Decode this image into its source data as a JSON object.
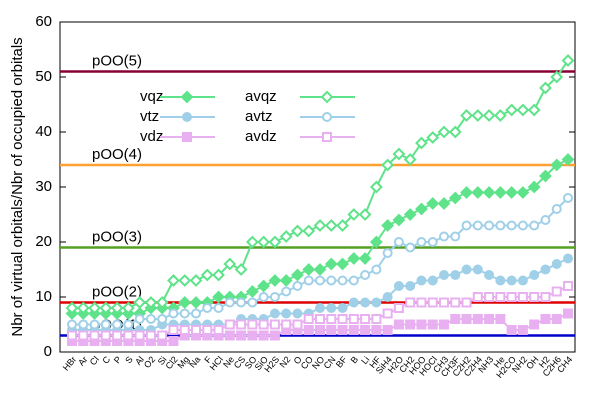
{
  "chart_data": {
    "type": "line",
    "ylabel": "Nbr of virtual orbitals/Nbr of occupied orbitals",
    "categories": [
      "HBr",
      "Ar",
      "Cl",
      "C",
      "P",
      "S",
      "Al",
      "O2",
      "Si",
      "Cl2",
      "Mg",
      "Na",
      "F",
      "HCl",
      "Ne",
      "CS",
      "SO",
      "SiO",
      "H2S",
      "N2",
      "O",
      "CO",
      "NO",
      "CN",
      "BF",
      "B",
      "Li",
      "HF",
      "SiH4",
      "H2O",
      "CH2",
      "HOO",
      "HOCl",
      "CH3",
      "CH3F",
      "C2H2",
      "C2H4",
      "NH3",
      "He",
      "H2CO",
      "NH2",
      "OH",
      "H2",
      "C2H6",
      "CH4"
    ],
    "ylim": [
      0,
      60
    ],
    "yticks": [
      0,
      10,
      20,
      30,
      40,
      50,
      60
    ],
    "hlines": [
      {
        "label": "pOO(1)",
        "value": 3,
        "color": "#0000cc"
      },
      {
        "label": "pOO(2)",
        "value": 9,
        "color": "#dd0000"
      },
      {
        "label": "pOO(3)",
        "value": 19,
        "color": "#55a022"
      },
      {
        "label": "pOO(4)",
        "value": 34,
        "color": "#ffa030"
      },
      {
        "label": "pOO(5)",
        "value": 51,
        "color": "#880033"
      }
    ],
    "series": [
      {
        "name": "vqz",
        "color": "#5fe38a",
        "marker": "diamond",
        "filled": true,
        "values": [
          7,
          7,
          7,
          7,
          7,
          7,
          7,
          8,
          8,
          8,
          9,
          9,
          9,
          10,
          10,
          10,
          11,
          12,
          13,
          13,
          14,
          15,
          15,
          16,
          16,
          17,
          17,
          20,
          23,
          24,
          25,
          26,
          27,
          27,
          28,
          29,
          29,
          29,
          29,
          29,
          29,
          30,
          32,
          34,
          35
        ]
      },
      {
        "name": "avqz",
        "color": "#5fe38a",
        "marker": "diamond",
        "filled": false,
        "values": [
          8,
          8,
          8,
          8,
          8,
          8,
          9,
          9,
          9,
          13,
          13,
          13,
          14,
          14,
          16,
          15,
          20,
          20,
          20,
          21,
          22,
          22,
          23,
          23,
          23,
          25,
          25,
          30,
          34,
          36,
          35,
          38,
          39,
          40,
          40,
          43,
          43,
          43,
          43,
          44,
          44,
          44,
          48,
          50,
          53
        ]
      },
      {
        "name": "vtz",
        "color": "#a0d0e8",
        "marker": "circle",
        "filled": true,
        "values": [
          4,
          4,
          4,
          4,
          4,
          4,
          4,
          4,
          5,
          5,
          5,
          5,
          5,
          5,
          5,
          6,
          6,
          6,
          7,
          7,
          7,
          7,
          8,
          8,
          8,
          9,
          9,
          9,
          10,
          12,
          12,
          13,
          13,
          14,
          14,
          15,
          15,
          14,
          13,
          13,
          13,
          14,
          15,
          16,
          17
        ]
      },
      {
        "name": "avtz",
        "color": "#a0d0e8",
        "marker": "circle",
        "filled": false,
        "values": [
          5,
          5,
          5,
          5,
          5,
          5,
          6,
          6,
          6,
          7,
          7,
          7,
          8,
          8,
          9,
          9,
          9,
          10,
          10,
          11,
          12,
          13,
          13,
          13,
          13,
          13,
          14,
          15,
          18,
          20,
          19,
          20,
          20,
          21,
          21,
          23,
          23,
          23,
          23,
          23,
          23,
          23,
          24,
          26,
          28
        ]
      },
      {
        "name": "vdz",
        "color": "#e8b0f0",
        "marker": "square",
        "filled": true,
        "values": [
          2,
          2,
          2,
          2,
          2,
          2,
          2,
          2,
          2,
          2,
          3,
          3,
          3,
          3,
          3,
          3,
          3,
          3,
          3,
          4,
          4,
          4,
          4,
          4,
          4,
          4,
          4,
          4,
          4,
          5,
          5,
          5,
          5,
          5,
          6,
          6,
          6,
          6,
          6,
          4,
          4,
          5,
          6,
          6,
          7
        ]
      },
      {
        "name": "avdz",
        "color": "#e8b0f0",
        "marker": "square",
        "filled": false,
        "values": [
          3,
          3,
          3,
          3,
          3,
          3,
          3,
          3,
          3,
          4,
          4,
          4,
          4,
          4,
          5,
          5,
          5,
          5,
          5,
          5,
          5,
          6,
          6,
          6,
          6,
          6,
          6,
          6,
          7,
          8,
          9,
          9,
          9,
          9,
          9,
          9,
          10,
          10,
          10,
          10,
          10,
          10,
          10,
          11,
          12
        ]
      }
    ]
  }
}
